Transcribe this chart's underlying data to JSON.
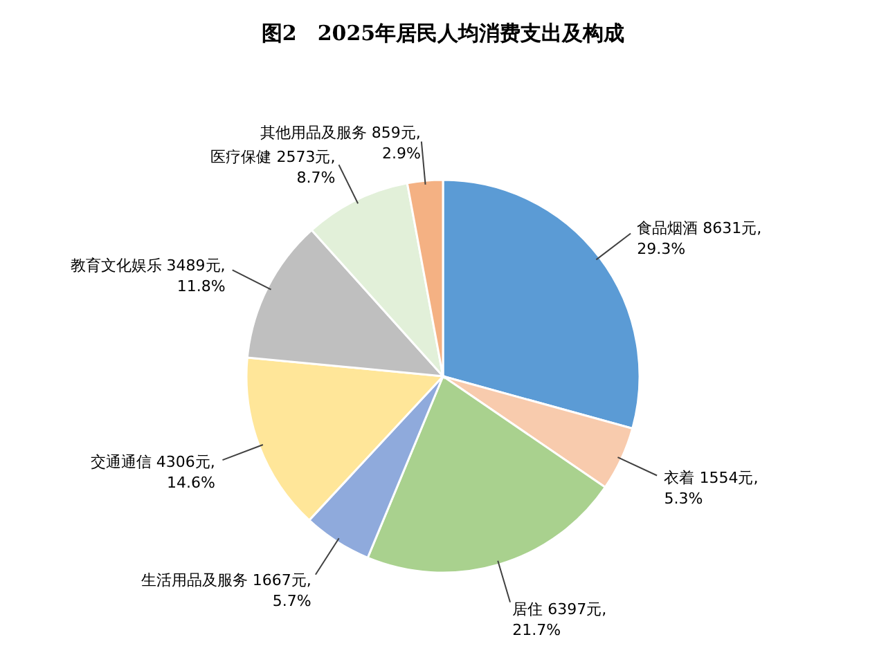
{
  "chart_data": {
    "type": "pie",
    "title": "图2　2025年居民人均消费支出及构成",
    "categories": [
      "食品烟酒",
      "衣着",
      "居住",
      "生活用品及服务",
      "交通通信",
      "教育文化娱乐",
      "医疗保健",
      "其他用品及服务"
    ],
    "values": [
      8631,
      1554,
      6397,
      1667,
      4306,
      3489,
      2573,
      859
    ],
    "value_labels": [
      "8631元,\n29.3%",
      "1554元,\n5.3%",
      "6397元,\n21.7%",
      "1667元,\n5.7%",
      "4306元,\n14.6%",
      "3489元,\n11.8%",
      "2573元,\n8.7%",
      "859元,\n2.9%"
    ],
    "colors": [
      "#5b9bd5",
      "#f8cbad",
      "#a9d18e",
      "#8faadc",
      "#ffe699",
      "#bfbfbf",
      "#e2f0d9",
      "#f4b183"
    ]
  }
}
